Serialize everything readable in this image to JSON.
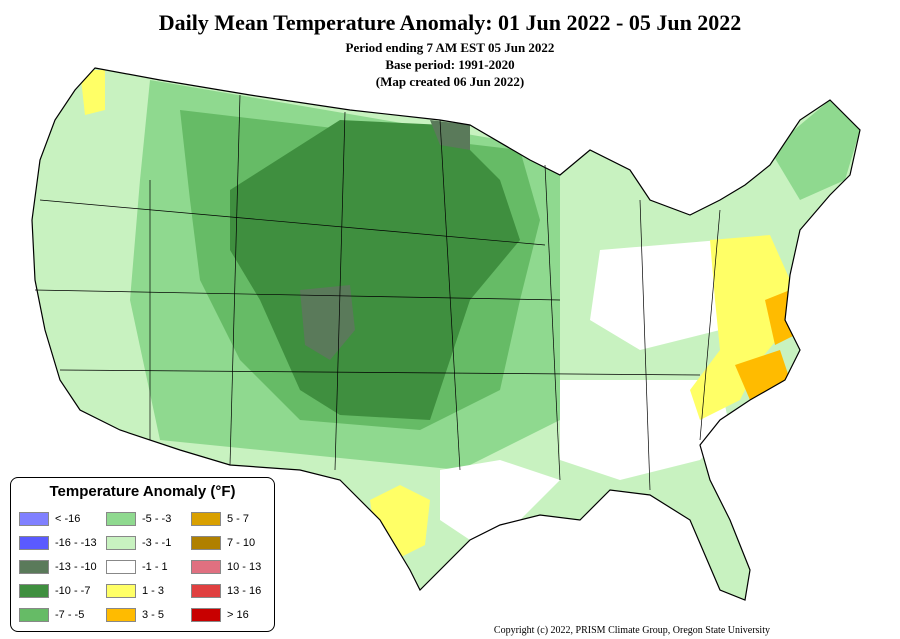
{
  "header": {
    "title": "Daily Mean Temperature Anomaly: 01 Jun 2022 - 05 Jun 2022",
    "period": "Period ending 7 AM EST 05 Jun 2022",
    "base": "Base period: 1991-2020",
    "created": "(Map created 06 Jun 2022)"
  },
  "legend": {
    "title": "Temperature Anomaly (°F)",
    "items": [
      {
        "label": "< -16",
        "color": "#8080ff"
      },
      {
        "label": "-16 - -13",
        "color": "#5a5aff"
      },
      {
        "label": "-13 - -10",
        "color": "#5a7a5a"
      },
      {
        "label": "-10 - -7",
        "color": "#3f8f3f"
      },
      {
        "label": "-7 - -5",
        "color": "#66bb66"
      },
      {
        "label": "-5 - -3",
        "color": "#8fd98f"
      },
      {
        "label": "-3 - -1",
        "color": "#c8f2c0"
      },
      {
        "label": "-1 - 1",
        "color": "#ffffff"
      },
      {
        "label": "1 - 3",
        "color": "#ffff66"
      },
      {
        "label": "3 - 5",
        "color": "#ffbb00"
      },
      {
        "label": "5 - 7",
        "color": "#d9a000"
      },
      {
        "label": "7 - 10",
        "color": "#b08000"
      },
      {
        "label": "10 - 13",
        "color": "#e07080"
      },
      {
        "label": "13 - 16",
        "color": "#e04040"
      },
      {
        "label": "> 16",
        "color": "#c80000"
      }
    ]
  },
  "copyright": "Copyright (c) 2022, PRISM Climate Group, Oregon State University"
}
